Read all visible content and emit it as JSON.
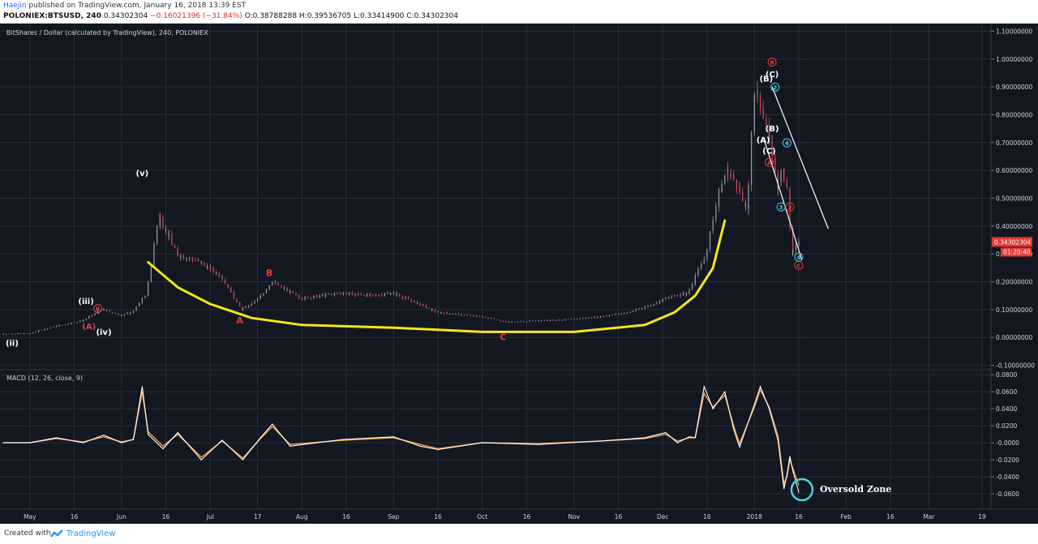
{
  "header": {
    "author": "Haejin",
    "published": "published on TradingView.com, January 16, 2018 13:39 EST",
    "symbol": "POLONIEX:BTSUSD, 240",
    "last": "0.34302304",
    "change": "−0.16021396 (−31.84%)",
    "ohlc": "O:0.38788288 H:0.39536705 L:0.33414900 C:0.34302304"
  },
  "footer": {
    "created_with": "Created with",
    "brand": "TradingView"
  },
  "colors": {
    "background": "#131722",
    "grid": "#2a2e39",
    "candle_up": "#9aa0a6",
    "candle_down": "#d84a56",
    "yellow_curve": "#f5e61b",
    "macd": "#ffffff",
    "signal": "#f59b42",
    "circle": "#4dd0e1",
    "price_tag": "#e53935"
  },
  "chart_data": [
    {
      "type": "line",
      "title": "BitShares / Dollar (calculated by TradingView), 240, POLONIEX",
      "x": [
        "2017-04-22",
        "2017-05-01",
        "2017-05-10",
        "2017-05-19",
        "2017-05-26",
        "2017-06-01",
        "2017-06-05",
        "2017-06-10",
        "2017-06-14",
        "2017-06-20",
        "2017-06-28",
        "2017-07-05",
        "2017-07-12",
        "2017-07-18",
        "2017-07-22",
        "2017-08-01",
        "2017-08-15",
        "2017-08-25",
        "2017-09-01",
        "2017-09-10",
        "2017-09-16",
        "2017-10-01",
        "2017-10-10",
        "2017-10-20",
        "2017-11-01",
        "2017-11-10",
        "2017-11-20",
        "2017-11-28",
        "2017-12-05",
        "2017-12-10",
        "2017-12-16",
        "2017-12-20",
        "2017-12-23",
        "2017-12-26",
        "2017-12-30",
        "2018-01-01",
        "2018-01-03",
        "2018-01-05",
        "2018-01-07",
        "2018-01-09",
        "2018-01-11",
        "2018-01-13",
        "2018-01-14",
        "2018-01-16"
      ],
      "values": [
        0.012,
        0.014,
        0.04,
        0.06,
        0.1,
        0.08,
        0.09,
        0.16,
        0.44,
        0.3,
        0.27,
        0.22,
        0.1,
        0.14,
        0.2,
        0.14,
        0.16,
        0.15,
        0.16,
        0.12,
        0.09,
        0.075,
        0.055,
        0.06,
        0.065,
        0.075,
        0.09,
        0.12,
        0.15,
        0.16,
        0.3,
        0.5,
        0.6,
        0.56,
        0.45,
        0.85,
        0.88,
        0.75,
        0.7,
        0.55,
        0.6,
        0.5,
        0.3,
        0.343
      ],
      "ylabels": [
        "1.10000000",
        "1.00000000",
        "0.90000000",
        "0.80000000",
        "0.70000000",
        "0.60000000",
        "0.50000000",
        "0.40000000",
        "0.30000000",
        "0.20000000",
        "0.10000000",
        "0.00000000",
        "-0.10000000"
      ],
      "ylim": [
        -0.11,
        1.11
      ],
      "xticks": [
        "May",
        "16",
        "Jun",
        "16",
        "Jul",
        "17",
        "Aug",
        "16",
        "Sep",
        "16",
        "Oct",
        "16",
        "Nov",
        "16",
        "Dec",
        "16",
        "2018",
        "16",
        "Feb",
        "16",
        "Mar",
        "19"
      ],
      "last_price_label": "0.34302304",
      "countdown_label": "01:20:40",
      "wave_labels": [
        {
          "text": "(ii)",
          "x": "2017-04-25",
          "y": -0.03,
          "color": "#ffffff"
        },
        {
          "text": "(iii)",
          "x": "2017-05-20",
          "y": 0.12,
          "color": "#ffffff"
        },
        {
          "text": "(iv)",
          "x": "2017-05-26",
          "y": 0.01,
          "color": "#ffffff"
        },
        {
          "text": "(v)",
          "x": "2017-06-08",
          "y": 0.58,
          "color": "#ffffff"
        },
        {
          "text": "(A)",
          "x": "2017-05-21",
          "y": 0.03,
          "color": "#d84a56"
        },
        {
          "text": "B",
          "x": "2017-05-24",
          "y": 0.095,
          "color": "#d84a56"
        },
        {
          "text": "A",
          "x": "2017-07-11",
          "y": 0.05,
          "color": "#e53935"
        },
        {
          "text": "B",
          "x": "2017-07-21",
          "y": 0.22,
          "color": "#e53935"
        },
        {
          "text": "C",
          "x": "2017-10-08",
          "y": -0.01,
          "color": "#e53935"
        },
        {
          "text": "B",
          "x": "2018-01-07",
          "y": 0.98,
          "color": "#e53935"
        },
        {
          "text": "(B)",
          "x": "2018-01-05",
          "y": 0.92,
          "color": "#ffffff"
        },
        {
          "text": "(C)",
          "x": "2018-01-07",
          "y": 0.935,
          "color": "#ffffff"
        },
        {
          "text": "2",
          "x": "2018-01-08",
          "y": 0.89,
          "color": "#4dd0e1"
        },
        {
          "text": "(B)",
          "x": "2018-01-07",
          "y": 0.74,
          "color": "#ffffff"
        },
        {
          "text": "(A)",
          "x": "2018-01-04",
          "y": 0.7,
          "color": "#ffffff"
        },
        {
          "text": "(C)",
          "x": "2018-01-06",
          "y": 0.66,
          "color": "#ffffff"
        },
        {
          "text": "4",
          "x": "2018-01-12",
          "y": 0.69,
          "color": "#4dd0e1"
        },
        {
          "text": "A",
          "x": "2018-01-06",
          "y": 0.62,
          "color": "#e53935"
        },
        {
          "text": "3",
          "x": "2018-01-10",
          "y": 0.46,
          "color": "#4dd0e1"
        },
        {
          "text": "3",
          "x": "2018-01-13",
          "y": 0.46,
          "color": "#e53935"
        },
        {
          "text": "4",
          "x": "2018-01-16",
          "y": 0.28,
          "color": "#4dd0e1"
        },
        {
          "text": "C",
          "x": "2018-01-16",
          "y": 0.25,
          "color": "#e53935"
        }
      ],
      "yellow_curve": {
        "x": [
          "2017-06-10",
          "2017-06-20",
          "2017-07-01",
          "2017-07-15",
          "2017-08-01",
          "2017-09-01",
          "2017-10-01",
          "2017-11-01",
          "2017-11-25",
          "2017-12-05",
          "2017-12-12",
          "2017-12-18",
          "2017-12-22"
        ],
        "values": [
          0.27,
          0.18,
          0.12,
          0.07,
          0.045,
          0.035,
          0.02,
          0.02,
          0.045,
          0.09,
          0.15,
          0.25,
          0.42
        ]
      },
      "channel_lines": [
        {
          "x": [
            "2018-01-07",
            "2018-01-26"
          ],
          "values": [
            0.9,
            0.39
          ]
        },
        {
          "x": [
            "2018-01-04",
            "2018-01-17"
          ],
          "values": [
            0.72,
            0.28
          ]
        }
      ]
    },
    {
      "type": "line",
      "title": "MACD (12, 26, close, 9)",
      "ylabels": [
        "0.0800",
        "0.0600",
        "0.0400",
        "0.0200",
        "-0.0000",
        "-0.0200",
        "-0.0400",
        "-0.0600"
      ],
      "ylim": [
        -0.078,
        0.084
      ],
      "x": [
        "2017-04-22",
        "2017-05-01",
        "2017-05-10",
        "2017-05-19",
        "2017-05-26",
        "2017-06-01",
        "2017-06-05",
        "2017-06-08",
        "2017-06-10",
        "2017-06-15",
        "2017-06-20",
        "2017-06-28",
        "2017-07-05",
        "2017-07-12",
        "2017-07-18",
        "2017-07-22",
        "2017-07-28",
        "2017-08-15",
        "2017-09-01",
        "2017-09-10",
        "2017-09-16",
        "2017-10-01",
        "2017-10-20",
        "2017-11-10",
        "2017-11-25",
        "2017-12-02",
        "2017-12-06",
        "2017-12-10",
        "2017-12-12",
        "2017-12-15",
        "2017-12-18",
        "2017-12-22",
        "2017-12-25",
        "2017-12-27",
        "2018-01-01",
        "2018-01-03",
        "2018-01-06",
        "2018-01-09",
        "2018-01-11",
        "2018-01-12",
        "2018-01-13",
        "2018-01-14",
        "2018-01-16"
      ],
      "series": [
        {
          "values": [
            0.0,
            0.0,
            0.006,
            0.0,
            0.009,
            0.0,
            0.004,
            0.066,
            0.01,
            -0.007,
            0.012,
            -0.02,
            0.003,
            -0.02,
            0.006,
            0.022,
            -0.004,
            0.004,
            0.007,
            -0.004,
            -0.008,
            0.0,
            -0.002,
            0.002,
            0.006,
            0.012,
            0.0,
            0.007,
            0.006,
            0.066,
            0.04,
            0.06,
            0.016,
            -0.005,
            0.045,
            0.066,
            0.04,
            0.003,
            -0.054,
            -0.038,
            -0.016,
            -0.033,
            -0.058
          ]
        },
        {
          "values": [
            0.0,
            0.0,
            0.005,
            0.001,
            0.007,
            0.001,
            0.004,
            0.06,
            0.013,
            -0.004,
            0.01,
            -0.017,
            0.002,
            -0.018,
            0.005,
            0.019,
            -0.002,
            0.003,
            0.006,
            -0.002,
            -0.007,
            0.0,
            -0.001,
            0.002,
            0.005,
            0.01,
            0.002,
            0.006,
            0.006,
            0.058,
            0.042,
            0.056,
            0.02,
            -0.001,
            0.042,
            0.062,
            0.042,
            0.008,
            -0.048,
            -0.04,
            -0.02,
            -0.03,
            -0.05
          ]
        }
      ],
      "annotation": "Oversold Zone"
    }
  ]
}
